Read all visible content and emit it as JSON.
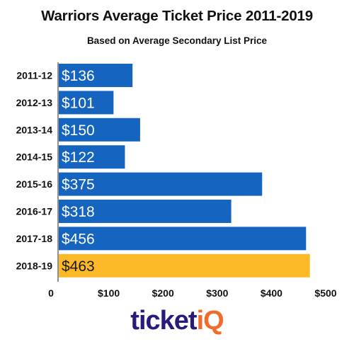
{
  "chart_data": {
    "type": "bar",
    "orientation": "horizontal",
    "title": "Warriors Average Ticket Price 2011-2019",
    "subtitle": "Based on Average Secondary List Price",
    "categories": [
      "2011-12",
      "2012-13",
      "2013-14",
      "2014-15",
      "2015-16",
      "2016-17",
      "2017-18",
      "2018-19"
    ],
    "values": [
      136,
      101,
      150,
      122,
      375,
      318,
      456,
      463
    ],
    "data_labels": [
      "$136",
      "$101",
      "$150",
      "$122",
      "$375",
      "$318",
      "$456",
      "$463"
    ],
    "x_ticks": [
      "0",
      "$100",
      "$200",
      "$300",
      "$400",
      "$500"
    ],
    "x_tick_values": [
      0,
      100,
      200,
      300,
      400,
      500
    ],
    "xlim": [
      0,
      500
    ],
    "grid": false,
    "colors": {
      "bar": "#1565c0",
      "highlight": "#fbb928",
      "highlight_label": "#1a1a1a",
      "label": "#ffffff"
    },
    "highlight_index": 7
  },
  "logo": {
    "text_main": "ticket",
    "text_accent": "iQ"
  }
}
